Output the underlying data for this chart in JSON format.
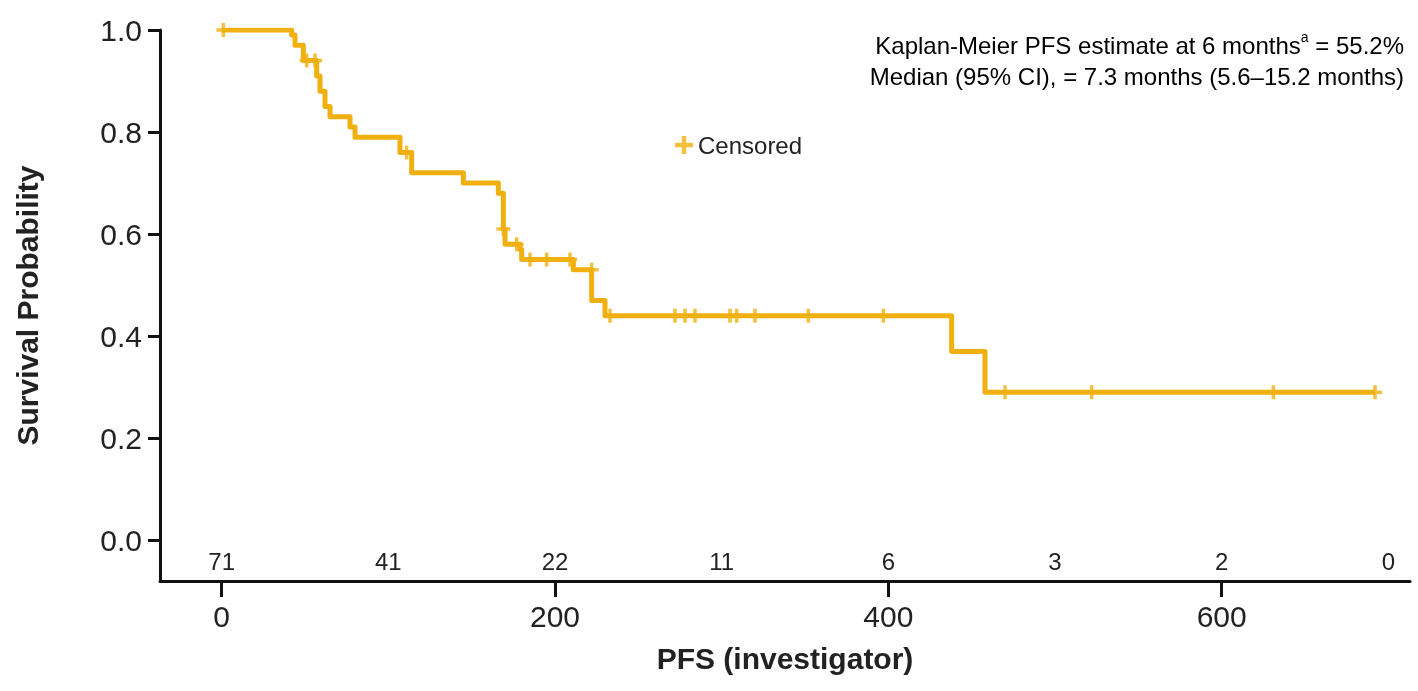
{
  "chart_data": {
    "type": "step",
    "xlabel": "PFS (investigator)",
    "ylabel": "Survival Probability",
    "xlim": [
      -37,
      713
    ],
    "xticks": [
      0,
      200,
      400,
      600
    ],
    "ylim": [
      -0.08,
      1.0
    ],
    "yticks": [
      {
        "value": 0,
        "label": "0.0"
      },
      {
        "value": 0.2,
        "label": "0.2"
      },
      {
        "value": 0.4,
        "label": "0.4"
      },
      {
        "value": 0.6,
        "label": "0.6"
      },
      {
        "value": 0.8,
        "label": "0.8"
      },
      {
        "value": 1.0,
        "label": "1.0"
      }
    ],
    "grid": false,
    "legend": "top",
    "series": [
      {
        "color": "#f0b010",
        "x": [
          0,
          42,
          44,
          49,
          57,
          59,
          62,
          65,
          77,
          80,
          107,
          114,
          145,
          166,
          169,
          170,
          179,
          180,
          211,
          222,
          230,
          438,
          458,
          692
        ],
        "values": [
          1.0,
          0.99,
          0.97,
          0.94,
          0.91,
          0.88,
          0.85,
          0.83,
          0.81,
          0.79,
          0.76,
          0.72,
          0.7,
          0.68,
          0.61,
          0.58,
          0.57,
          0.55,
          0.53,
          0.47,
          0.44,
          0.37,
          0.29,
          0.29
        ]
      },
      {
        "type": "scatter",
        "name": "Censored",
        "marker": "cross",
        "color": "#f0b010",
        "x": [
          1,
          51,
          56,
          111,
          169,
          177,
          185,
          195,
          209,
          222,
          233,
          272,
          278,
          284,
          305,
          309,
          320,
          352,
          397,
          470,
          522,
          631,
          692
        ],
        "values": [
          1.0,
          0.94,
          0.94,
          0.76,
          0.61,
          0.58,
          0.55,
          0.55,
          0.55,
          0.53,
          0.44,
          0.44,
          0.44,
          0.44,
          0.44,
          0.44,
          0.44,
          0.44,
          0.44,
          0.29,
          0.29,
          0.29,
          0.29
        ]
      }
    ],
    "annotations": [
      "Kaplan-Meier PFS estimate at 6 months$^{a}$ = 55.2%",
      "Median (95% CI), = 7.3 months (5.6–15.2 months)",
      "71",
      "41",
      "22",
      "11",
      "6",
      "3",
      "2",
      "0"
    ]
  }
}
